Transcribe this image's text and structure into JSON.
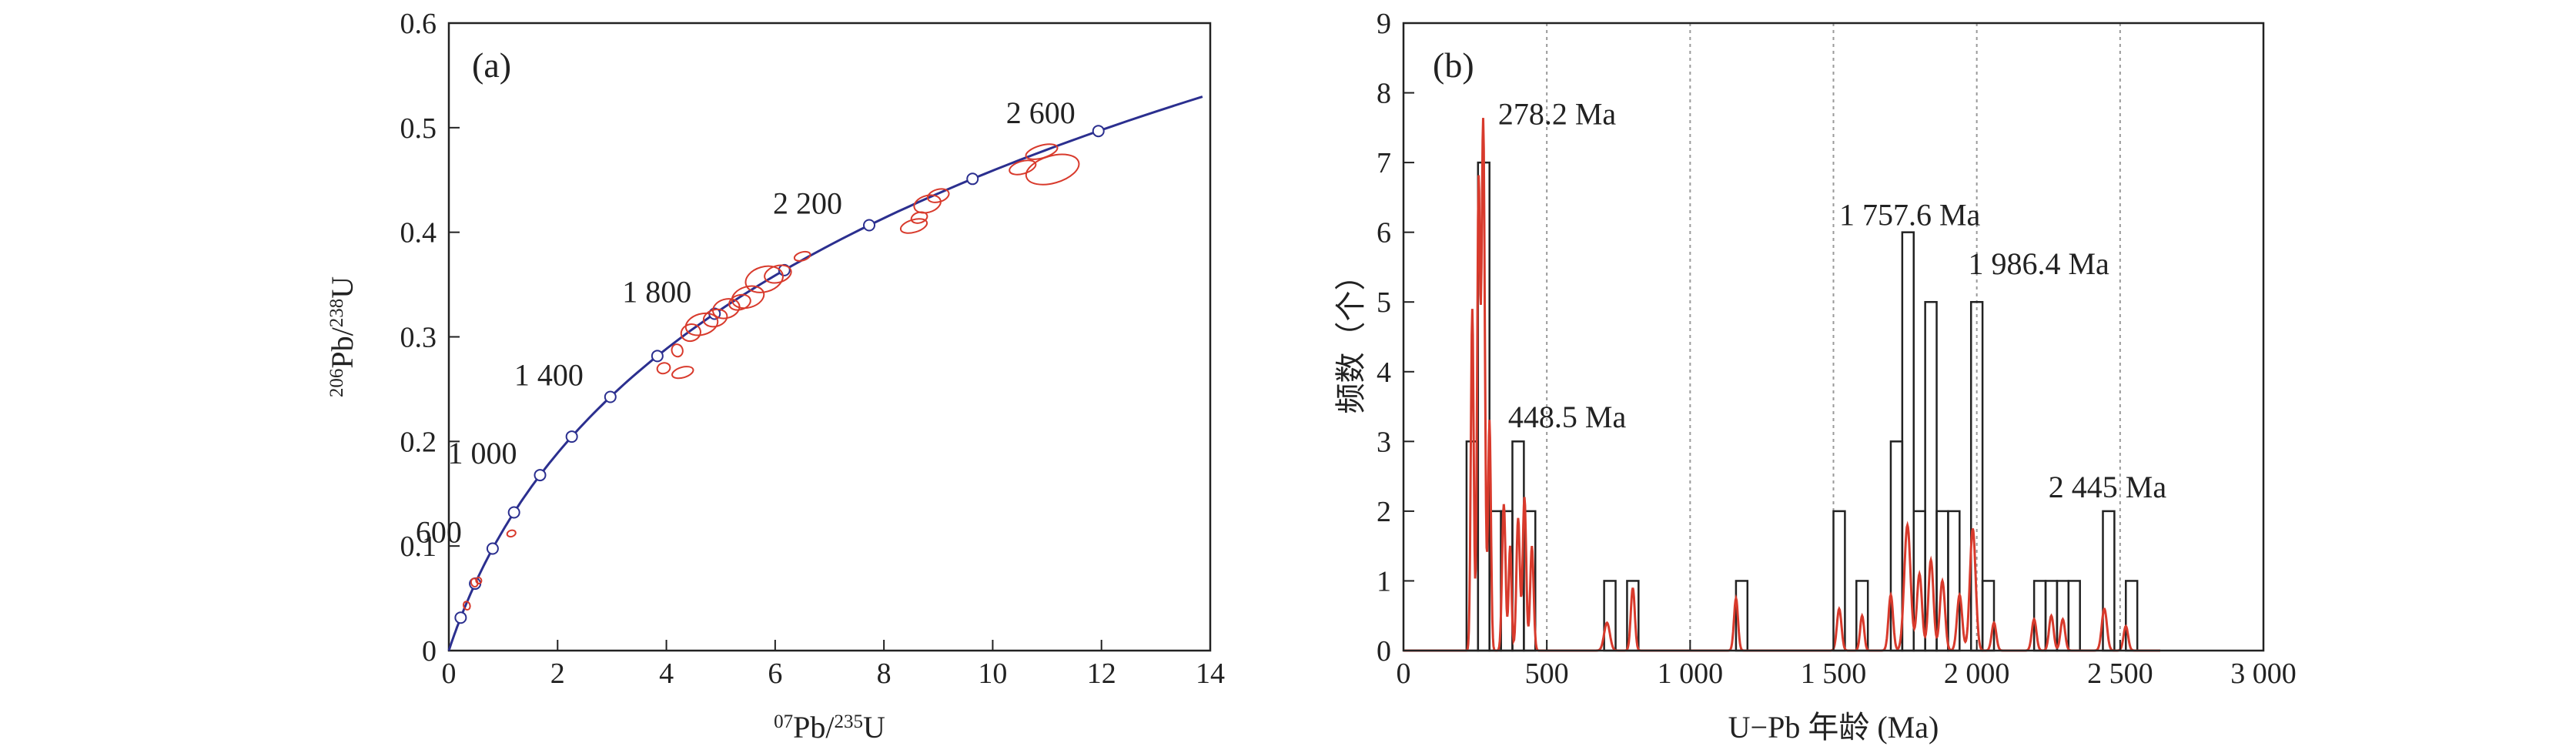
{
  "chart_data": [
    {
      "type": "scatter",
      "panel_label": "(a)",
      "xlabel": {
        "sup": "07",
        "base": "Pb/",
        "sup2": "235",
        "tail": "U"
      },
      "ylabel": {
        "sup": "206",
        "base": "Pb/",
        "sup2": "238",
        "tail": "U"
      },
      "xlim": [
        0,
        14
      ],
      "ylim": [
        0,
        0.6
      ],
      "xticks": [
        0,
        2,
        4,
        6,
        8,
        10,
        12,
        14
      ],
      "yticks": [
        0,
        0.1,
        0.2,
        0.3,
        0.4,
        0.5,
        0.6
      ],
      "ytick_labels": [
        "0",
        "0.1",
        "0.2",
        "0.3",
        "0.4",
        "0.5",
        "0.6"
      ],
      "concordia_ages_ma": [
        200,
        400,
        600,
        800,
        1000,
        1200,
        1400,
        1600,
        1800,
        2000,
        2200,
        2400,
        2600
      ],
      "age_labels": [
        {
          "text": "600",
          "age": 600
        },
        {
          "text": "1 000",
          "age": 1000
        },
        {
          "text": "1 400",
          "age": 1400
        },
        {
          "text": "1 800",
          "age": 1800
        },
        {
          "text": "2 200",
          "age": 2200
        },
        {
          "text": "2 600",
          "age": 2600
        }
      ],
      "ellipses": [
        {
          "x": 0.33,
          "y": 0.043,
          "rx": 0.06,
          "ry": 0.004
        },
        {
          "x": 0.47,
          "y": 0.065,
          "rx": 0.06,
          "ry": 0.004
        },
        {
          "x": 0.55,
          "y": 0.067,
          "rx": 0.05,
          "ry": 0.003
        },
        {
          "x": 1.15,
          "y": 0.112,
          "rx": 0.08,
          "ry": 0.003
        },
        {
          "x": 3.95,
          "y": 0.27,
          "rx": 0.12,
          "ry": 0.005
        },
        {
          "x": 4.3,
          "y": 0.266,
          "rx": 0.2,
          "ry": 0.005
        },
        {
          "x": 4.2,
          "y": 0.287,
          "rx": 0.1,
          "ry": 0.006
        },
        {
          "x": 4.45,
          "y": 0.304,
          "rx": 0.18,
          "ry": 0.008
        },
        {
          "x": 4.65,
          "y": 0.312,
          "rx": 0.3,
          "ry": 0.01
        },
        {
          "x": 4.9,
          "y": 0.318,
          "rx": 0.22,
          "ry": 0.008
        },
        {
          "x": 5.1,
          "y": 0.327,
          "rx": 0.25,
          "ry": 0.009
        },
        {
          "x": 5.35,
          "y": 0.333,
          "rx": 0.2,
          "ry": 0.007
        },
        {
          "x": 5.5,
          "y": 0.338,
          "rx": 0.3,
          "ry": 0.01
        },
        {
          "x": 5.8,
          "y": 0.355,
          "rx": 0.35,
          "ry": 0.012
        },
        {
          "x": 6.05,
          "y": 0.36,
          "rx": 0.25,
          "ry": 0.008
        },
        {
          "x": 6.5,
          "y": 0.377,
          "rx": 0.15,
          "ry": 0.004
        },
        {
          "x": 8.55,
          "y": 0.406,
          "rx": 0.25,
          "ry": 0.006
        },
        {
          "x": 8.65,
          "y": 0.414,
          "rx": 0.15,
          "ry": 0.005
        },
        {
          "x": 8.8,
          "y": 0.427,
          "rx": 0.25,
          "ry": 0.008
        },
        {
          "x": 9.0,
          "y": 0.435,
          "rx": 0.2,
          "ry": 0.006
        },
        {
          "x": 10.55,
          "y": 0.462,
          "rx": 0.25,
          "ry": 0.006
        },
        {
          "x": 10.9,
          "y": 0.477,
          "rx": 0.3,
          "ry": 0.006
        },
        {
          "x": 11.1,
          "y": 0.46,
          "rx": 0.5,
          "ry": 0.013
        }
      ],
      "colors": {
        "concordia": "#2b2f8f",
        "ellipse": "#d83a2c",
        "axes": "#222222"
      }
    },
    {
      "type": "bar",
      "panel_label": "(b)",
      "xlabel": "U−Pb 年龄 (Ma)",
      "ylabel": "频数（个）",
      "xlim": [
        0,
        3000
      ],
      "ylim": [
        0,
        9
      ],
      "xticks": [
        0,
        500,
        1000,
        1500,
        2000,
        2500,
        3000
      ],
      "xtick_labels": [
        "0",
        "500",
        "1 000",
        "1 500",
        "2 000",
        "2 500",
        "3 000"
      ],
      "yticks": [
        0,
        1,
        2,
        3,
        4,
        5,
        6,
        7,
        8,
        9
      ],
      "ytick_labels": [
        "0",
        "1",
        "2",
        "3",
        "4",
        "5",
        "6",
        "7",
        "8",
        "9"
      ],
      "gridlines_x": [
        500,
        1000,
        1500,
        2000,
        2500,
        3000
      ],
      "bin_width": 40,
      "bins": [
        {
          "x": 220,
          "count": 3
        },
        {
          "x": 260,
          "count": 7
        },
        {
          "x": 300,
          "count": 2
        },
        {
          "x": 340,
          "count": 2
        },
        {
          "x": 380,
          "count": 3
        },
        {
          "x": 420,
          "count": 2
        },
        {
          "x": 700,
          "count": 1
        },
        {
          "x": 780,
          "count": 1
        },
        {
          "x": 1160,
          "count": 1
        },
        {
          "x": 1500,
          "count": 2
        },
        {
          "x": 1580,
          "count": 1
        },
        {
          "x": 1700,
          "count": 3
        },
        {
          "x": 1740,
          "count": 6
        },
        {
          "x": 1780,
          "count": 2
        },
        {
          "x": 1820,
          "count": 5
        },
        {
          "x": 1860,
          "count": 2
        },
        {
          "x": 1900,
          "count": 2
        },
        {
          "x": 1980,
          "count": 5
        },
        {
          "x": 2020,
          "count": 1
        },
        {
          "x": 2200,
          "count": 1
        },
        {
          "x": 2240,
          "count": 1
        },
        {
          "x": 2280,
          "count": 1
        },
        {
          "x": 2320,
          "count": 1
        },
        {
          "x": 2440,
          "count": 2
        },
        {
          "x": 2520,
          "count": 1
        }
      ],
      "kde_peaks": [
        {
          "x": 240,
          "h": 4.9,
          "w": 5
        },
        {
          "x": 262,
          "h": 6.6,
          "w": 5
        },
        {
          "x": 278,
          "h": 7.6,
          "w": 6
        },
        {
          "x": 300,
          "h": 3.3,
          "w": 5
        },
        {
          "x": 350,
          "h": 2.1,
          "w": 6
        },
        {
          "x": 372,
          "h": 1.5,
          "w": 5
        },
        {
          "x": 400,
          "h": 1.9,
          "w": 6
        },
        {
          "x": 422,
          "h": 2.2,
          "w": 6
        },
        {
          "x": 448,
          "h": 1.5,
          "w": 6
        },
        {
          "x": 710,
          "h": 0.4,
          "w": 10
        },
        {
          "x": 800,
          "h": 0.9,
          "w": 7
        },
        {
          "x": 1160,
          "h": 0.75,
          "w": 7
        },
        {
          "x": 1520,
          "h": 0.6,
          "w": 8
        },
        {
          "x": 1600,
          "h": 0.5,
          "w": 7
        },
        {
          "x": 1700,
          "h": 0.8,
          "w": 8
        },
        {
          "x": 1758,
          "h": 1.8,
          "w": 11
        },
        {
          "x": 1800,
          "h": 1.1,
          "w": 9
        },
        {
          "x": 1840,
          "h": 1.3,
          "w": 9
        },
        {
          "x": 1880,
          "h": 1.0,
          "w": 9
        },
        {
          "x": 1940,
          "h": 0.8,
          "w": 9
        },
        {
          "x": 1986,
          "h": 1.75,
          "w": 10
        },
        {
          "x": 2060,
          "h": 0.4,
          "w": 8
        },
        {
          "x": 2200,
          "h": 0.45,
          "w": 8
        },
        {
          "x": 2260,
          "h": 0.5,
          "w": 8
        },
        {
          "x": 2300,
          "h": 0.45,
          "w": 8
        },
        {
          "x": 2445,
          "h": 0.6,
          "w": 9
        },
        {
          "x": 2520,
          "h": 0.35,
          "w": 8
        }
      ],
      "annotations": [
        {
          "text": "278.2 Ma",
          "x": 330,
          "y": 7.55
        },
        {
          "text": "448.5 Ma",
          "x": 365,
          "y": 3.2
        },
        {
          "text": "1 757.6 Ma",
          "x": 1520,
          "y": 6.1
        },
        {
          "text": "1 986.4 Ma",
          "x": 1970,
          "y": 5.4
        },
        {
          "text": "2 445 Ma",
          "x": 2250,
          "y": 2.2
        }
      ],
      "colors": {
        "bars": "#222222",
        "kde": "#d83a2c",
        "grid": "#9a9a9a"
      }
    }
  ]
}
